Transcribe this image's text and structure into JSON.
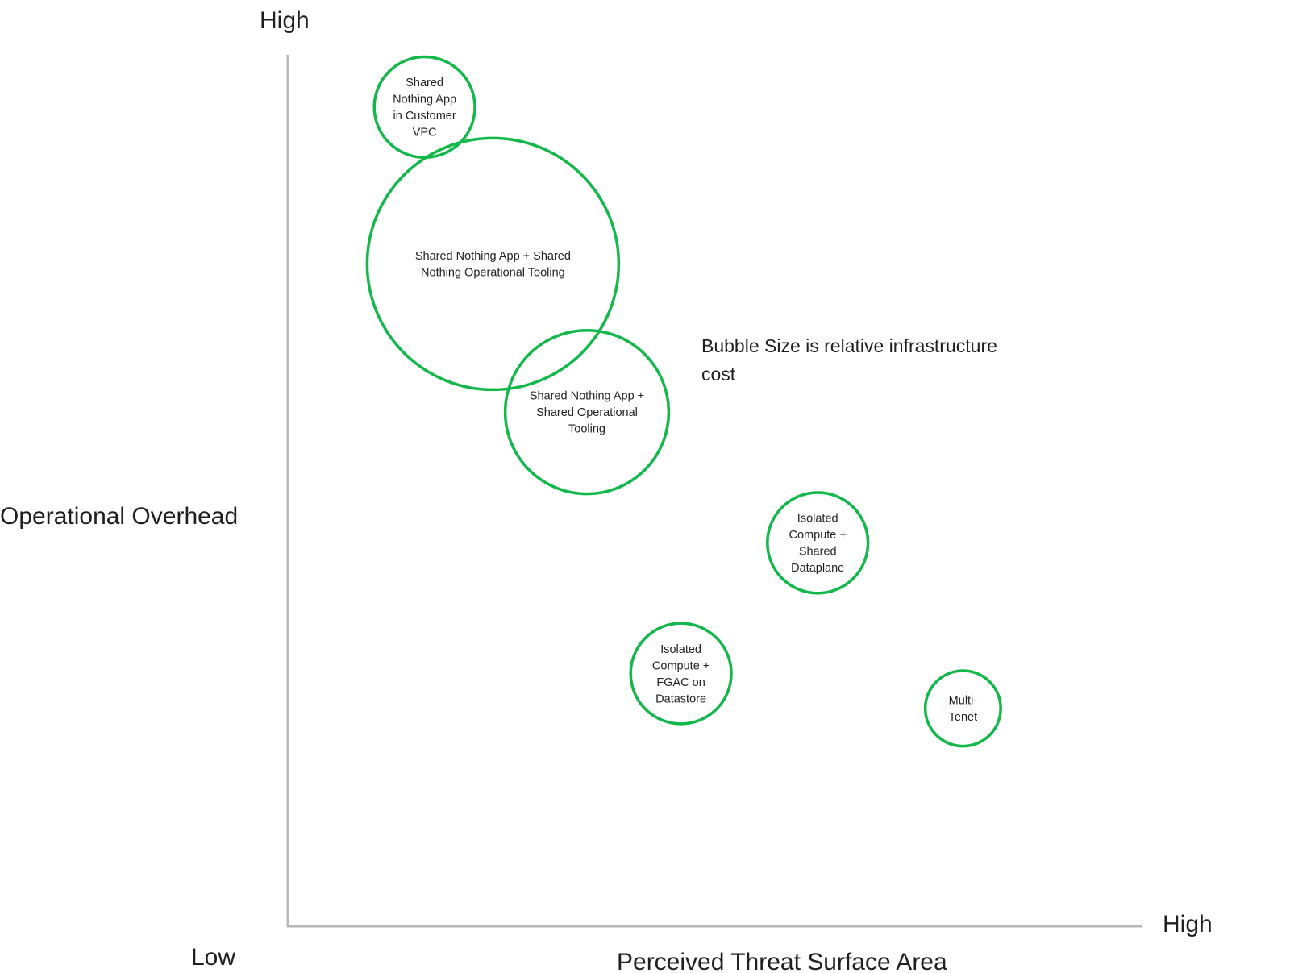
{
  "chart_data": {
    "type": "scatter",
    "title": "",
    "xlabel": "Perceived Threat Surface Area",
    "ylabel": "Operational Overhead",
    "x_low_label": "Low",
    "x_high_label": "High",
    "y_high_label": "High",
    "xlim": [
      0,
      10
    ],
    "ylim": [
      0,
      10
    ],
    "grid": false,
    "bubble_color": "#12b84a",
    "annotation": "Bubble Size is relative infrastructure cost",
    "points": [
      {
        "label": [
          "Shared",
          "Nothing App",
          "in Customer",
          "VPC"
        ],
        "x": 1.6,
        "y": 9.4,
        "size": 1.2
      },
      {
        "label": [
          "Shared Nothing App + Shared",
          "Nothing Operational Tooling"
        ],
        "x": 2.4,
        "y": 7.6,
        "size": 3.0
      },
      {
        "label": [
          "Shared Nothing App +",
          "Shared Operational",
          "Tooling"
        ],
        "x": 3.5,
        "y": 5.9,
        "size": 1.95
      },
      {
        "label": [
          "Isolated",
          "Compute +",
          "Shared",
          "Dataplane"
        ],
        "x": 6.2,
        "y": 4.4,
        "size": 1.2
      },
      {
        "label": [
          "Isolated",
          "Compute +",
          "FGAC on",
          "Datastore"
        ],
        "x": 4.6,
        "y": 2.9,
        "size": 1.2
      },
      {
        "label": [
          "Multi-",
          "Tenet"
        ],
        "x": 7.9,
        "y": 2.5,
        "size": 0.9
      }
    ]
  }
}
